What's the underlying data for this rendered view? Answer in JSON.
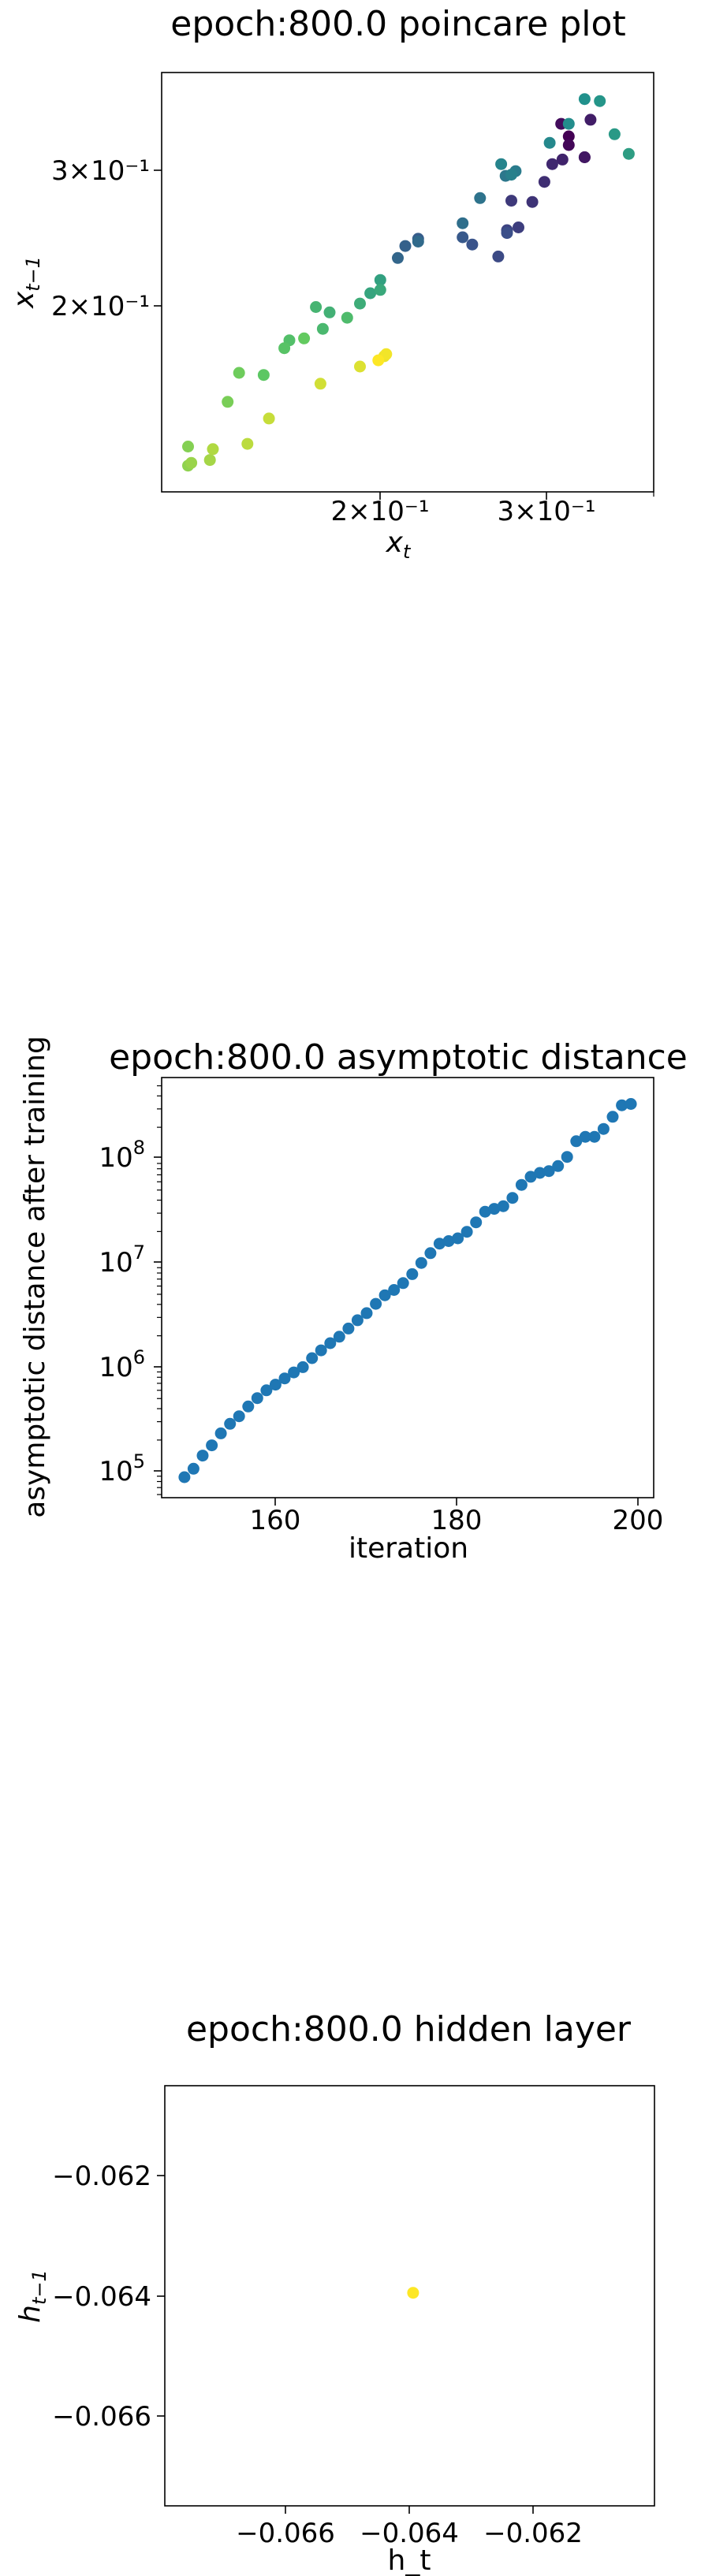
{
  "chart_data": [
    {
      "type": "scatter",
      "title": "epoch:800.0 poincare plot",
      "xlabel": "x",
      "xlabel_sub": "t",
      "ylabel": "x",
      "ylabel_sub": "t−1",
      "xscale": "log",
      "yscale": "log",
      "xlim": [
        0.118,
        0.4
      ],
      "ylim": [
        0.112,
        0.385
      ],
      "xticks": [
        {
          "value": 0.2,
          "label": "2×10⁻¹"
        },
        {
          "value": 0.3,
          "label": "3×10⁻¹"
        }
      ],
      "yticks": [
        {
          "value": 0.2,
          "label": "2×10⁻¹"
        },
        {
          "value": 0.3,
          "label": "3×10⁻¹"
        }
      ],
      "colormap": "viridis",
      "x": [
        0.324,
        0.324,
        0.318,
        0.337,
        0.337,
        0.342,
        0.319,
        0.311,
        0.305,
        0.296,
        0.281,
        0.286,
        0.278,
        0.272,
        0.278,
        0.255,
        0.249,
        0.223,
        0.216,
        0.212,
        0.223,
        0.249,
        0.26,
        0.277,
        0.284,
        0.281,
        0.274,
        0.309,
        0.324,
        0.337,
        0.35,
        0.363,
        0.376,
        0.203,
        0.198,
        0.203,
        0.193,
        0.179,
        0.173,
        0.176,
        0.187,
        0.162,
        0.16,
        0.152,
        0.168,
        0.143,
        0.139,
        0.126,
        0.126,
        0.127,
        0.133,
        0.134,
        0.146,
        0.154,
        0.175,
        0.193,
        0.205,
        0.206,
        0.202
      ],
      "y": [
        0.319,
        0.311,
        0.331,
        0.3,
        0.3,
        0.335,
        0.298,
        0.294,
        0.279,
        0.263,
        0.264,
        0.244,
        0.242,
        0.224,
        0.24,
        0.232,
        0.237,
        0.236,
        0.231,
        0.223,
        0.234,
        0.247,
        0.266,
        0.284,
        0.288,
        0.285,
        0.294,
        0.313,
        0.331,
        0.356,
        0.354,
        0.321,
        0.303,
        0.209,
        0.201,
        0.203,
        0.195,
        0.19,
        0.193,
        0.181,
        0.187,
        0.175,
        0.171,
        0.158,
        0.176,
        0.159,
        0.146,
        0.128,
        0.121,
        0.122,
        0.123,
        0.127,
        0.129,
        0.139,
        0.154,
        0.162,
        0.167,
        0.168,
        0.165
      ],
      "color_order_note": ""
    },
    {
      "type": "scatter",
      "title": "epoch:800.0 asymptotic distance",
      "xlabel": "iteration",
      "ylabel": "asymptotic distance after training",
      "yscale": "log",
      "xlim": [
        147.5,
        201.5
      ],
      "ylim": [
        56000.0,
        600000000.0
      ],
      "xticks": [
        {
          "value": 160,
          "label": "160"
        },
        {
          "value": 180,
          "label": "180"
        },
        {
          "value": 200,
          "label": "200"
        }
      ],
      "yticks": [
        {
          "value": 100000.0,
          "label": "10",
          "exp": "5"
        },
        {
          "value": 1000000.0,
          "label": "10",
          "exp": "6"
        },
        {
          "value": 10000000.0,
          "label": "10",
          "exp": "7"
        },
        {
          "value": 100000000.0,
          "label": "10",
          "exp": "8"
        }
      ],
      "x": [
        150,
        151,
        152,
        153,
        154,
        155,
        156,
        157,
        158,
        159,
        160,
        161,
        162,
        163,
        164,
        165,
        166,
        167,
        168,
        169,
        170,
        171,
        172,
        173,
        174,
        175,
        176,
        177,
        178,
        179,
        180,
        181,
        182,
        183,
        184,
        185,
        186,
        187,
        188,
        189,
        190,
        191,
        192,
        193,
        194,
        195,
        196,
        197,
        198,
        199
      ],
      "y": [
        88000.0,
        106000.0,
        142000.0,
        178000.0,
        232000.0,
        286000.0,
        338000.0,
        420000.0,
        505000.0,
        600000.0,
        680000.0,
        780000.0,
        890000.0,
        1000000.0,
        1220000.0,
        1450000.0,
        1700000.0,
        1960000.0,
        2350000.0,
        2820000.0,
        3300000.0,
        4050000.0,
        4900000.0,
        5500000.0,
        6400000.0,
        7800000.0,
        10000000.0,
        12400000.0,
        15300000.0,
        16200000.0,
        17200000.0,
        19900000.0,
        24500000.0,
        31000000.0,
        33000000.0,
        35000000.0,
        42000000.0,
        56000000.0,
        67000000.0,
        73000000.0,
        76000000.0,
        85000000.0,
        104000000.0,
        147000000.0,
        162000000.0,
        162000000.0,
        193000000.0,
        252000000.0,
        325000000.0,
        335000000.0
      ],
      "color": "#1f77b4"
    },
    {
      "type": "scatter",
      "title": "epoch:800.0 hidden layer",
      "xlabel": "h_t",
      "ylabel": "h",
      "ylabel_sub": "t−1",
      "xlim": [
        -0.0675,
        -0.0605
      ],
      "ylim": [
        -0.0675,
        -0.0605
      ],
      "xticks": [
        {
          "value": -0.066,
          "label": "−0.066"
        },
        {
          "value": -0.064,
          "label": "−0.064"
        },
        {
          "value": -0.062,
          "label": "−0.062"
        }
      ],
      "yticks": [
        {
          "value": -0.066,
          "label": "−0.066"
        },
        {
          "value": -0.064,
          "label": "−0.064"
        },
        {
          "value": -0.062,
          "label": "−0.062"
        }
      ],
      "x": [
        -0.06395
      ],
      "y": [
        -0.06395
      ],
      "color": "#fde725"
    }
  ]
}
